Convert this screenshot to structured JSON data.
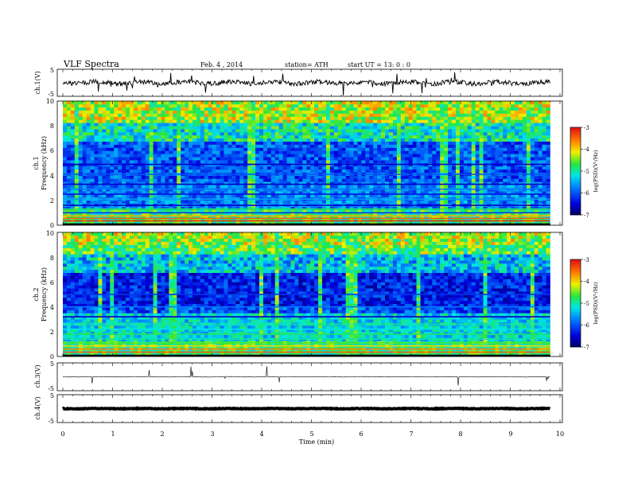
{
  "header": {
    "title": "VLF  Spectra",
    "date": "Feb. 4  , 2014",
    "station": "station= ATH",
    "start": "start  UT  =    13: 0  : 0"
  },
  "panels": {
    "ch1_wave": {
      "ylabel": "ch.1(V)",
      "ticks": [
        "5",
        "-5"
      ]
    },
    "ch1_spec": {
      "ylabel_ch": "ch.1",
      "ylabel": "Frequency  (kHz)",
      "ticks": [
        "10",
        "8",
        "6",
        "4",
        "2",
        "0"
      ],
      "colorbar_label": "log(PSD)(V²/Hz)",
      "colorbar_ticks": [
        "-3",
        "-4",
        "-5",
        "-6",
        "-7"
      ]
    },
    "ch2_spec": {
      "ylabel_ch": "ch.2",
      "ylabel": "Frequency  (kHz)",
      "ticks": [
        "10",
        "8",
        "6",
        "4",
        "2",
        "0"
      ],
      "colorbar_label": "log(PSD)(V²/Hz)",
      "colorbar_ticks": [
        "-3",
        "-4",
        "-5",
        "-6",
        "-7"
      ]
    },
    "ch3_wave": {
      "ylabel": "ch.3(V)",
      "ticks": [
        "5",
        "-5"
      ]
    },
    "ch4_wave": {
      "ylabel": "ch.4(V)",
      "ticks": [
        "5",
        "-5"
      ]
    }
  },
  "xaxis": {
    "label": "Time  (min)",
    "ticks": [
      "0",
      "1",
      "2",
      "3",
      "4",
      "5",
      "6",
      "7",
      "8",
      "9",
      "10"
    ]
  },
  "colors": {
    "spec_low": "#00007a",
    "spec_high": "#e81010"
  },
  "chart_data": [
    {
      "type": "line",
      "name": "ch.1 waveform",
      "ylabel": "ch.1(V)",
      "ylim": [
        -5,
        5
      ],
      "xlim": [
        0,
        10
      ],
      "baseline": 0,
      "xdata_end": 9.8
    },
    {
      "type": "heatmap",
      "name": "ch.1 spectrogram",
      "xlabel": "Time  (min)",
      "ylabel": "Frequency  (kHz)",
      "xlim": [
        0,
        10
      ],
      "ylim": [
        0,
        10
      ],
      "xdata_end": 9.8,
      "clim": [
        -7,
        -3
      ],
      "colorbar_label": "log(PSD)(V²/Hz)"
    },
    {
      "type": "heatmap",
      "name": "ch.2 spectrogram",
      "xlabel": "Time  (min)",
      "ylabel": "Frequency  (kHz)",
      "xlim": [
        0,
        10
      ],
      "ylim": [
        0,
        10
      ],
      "xdata_end": 9.8,
      "clim": [
        -7,
        -3
      ],
      "colorbar_label": "log(PSD)(V²/Hz)"
    },
    {
      "type": "line",
      "name": "ch.3 waveform",
      "ylabel": "ch.3(V)",
      "ylim": [
        -5,
        5
      ],
      "xlim": [
        0,
        10
      ],
      "baseline": 0,
      "xdata_end": 9.8
    },
    {
      "type": "line",
      "name": "ch.4 waveform",
      "ylabel": "ch.4(V)",
      "ylim": [
        -5,
        5
      ],
      "xlim": [
        0,
        10
      ],
      "baseline": 0,
      "xdata_end": 9.8
    }
  ]
}
